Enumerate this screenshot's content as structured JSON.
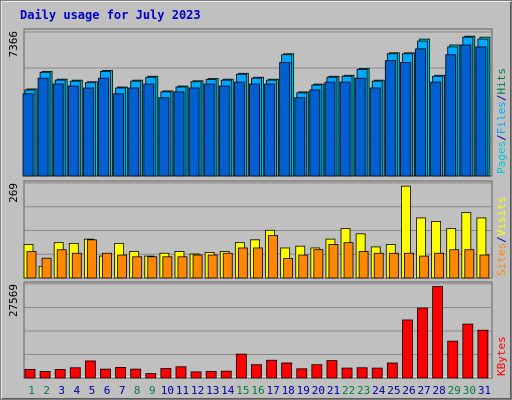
{
  "title": "Daily usage for July 2023",
  "colors": {
    "hits": "#00c8d0",
    "files": "#00a8ff",
    "pages": "#0060d0",
    "visits": "#ffff00",
    "sites": "#ff8800",
    "kbytes": "#ff0000",
    "weekend_label": "#008040",
    "weekday_label": "#0000a0",
    "panel_bg": "#c0c0c0",
    "frame": "#808080"
  },
  "chart_data": [
    {
      "type": "bar",
      "title": "Daily usage for July 2023",
      "ymax_label": "7366",
      "ylim": [
        0,
        7366
      ],
      "legend": [
        {
          "label": "Pages",
          "color": "#00c8d0"
        },
        {
          "label": "/",
          "color": "#0000a0"
        },
        {
          "label": "Files",
          "color": "#00a8ff"
        },
        {
          "label": "/",
          "color": "#0000a0"
        },
        {
          "label": "Hits",
          "color": "#008040"
        }
      ],
      "categories": [
        "1",
        "2",
        "3",
        "4",
        "5",
        "6",
        "7",
        "8",
        "9",
        "10",
        "11",
        "12",
        "13",
        "14",
        "15",
        "16",
        "17",
        "18",
        "19",
        "20",
        "21",
        "22",
        "23",
        "24",
        "25",
        "26",
        "27",
        "28",
        "29",
        "30",
        "31"
      ],
      "weekend_days": [
        "1",
        "2",
        "8",
        "9",
        "15",
        "16",
        "22",
        "23",
        "29",
        "30"
      ],
      "series": [
        {
          "name": "Hits",
          "values": [
            4450,
            5350,
            4950,
            4900,
            4820,
            5400,
            4550,
            4900,
            5100,
            4350,
            4600,
            4870,
            4980,
            4950,
            5250,
            5050,
            4950,
            6250,
            4300,
            4700,
            5100,
            5150,
            5500,
            4900,
            6300,
            6300,
            7000,
            5150,
            6700,
            7150,
            7100
          ]
        },
        {
          "name": "Files",
          "values": [
            4400,
            5300,
            4900,
            4850,
            4770,
            5350,
            4500,
            4850,
            5050,
            4300,
            4550,
            4820,
            4930,
            4900,
            5200,
            5000,
            4900,
            6200,
            4250,
            4650,
            5050,
            5100,
            5450,
            4850,
            6250,
            6250,
            6900,
            5100,
            6600,
            7100,
            7000
          ]
        },
        {
          "name": "Pages",
          "values": [
            4200,
            5000,
            4700,
            4600,
            4500,
            5000,
            4200,
            4500,
            4700,
            4000,
            4300,
            4500,
            4700,
            4600,
            4800,
            4700,
            4700,
            5800,
            4000,
            4400,
            4800,
            4800,
            5000,
            4500,
            5900,
            5800,
            6500,
            4800,
            6200,
            6700,
            6600
          ]
        }
      ]
    },
    {
      "type": "bar",
      "ymax_label": "269",
      "ylim": [
        0,
        269
      ],
      "legend": [
        {
          "label": "Sites",
          "color": "#ff8800"
        },
        {
          "label": "/",
          "color": "#0000a0"
        },
        {
          "label": "Visits",
          "color": "#ffff00"
        }
      ],
      "series": [
        {
          "name": "Visits",
          "values": [
            95,
            33,
            100,
            98,
            110,
            62,
            98,
            75,
            62,
            70,
            75,
            68,
            72,
            75,
            100,
            108,
            135,
            85,
            90,
            85,
            110,
            140,
            125,
            88,
            95,
            260,
            170,
            160,
            140,
            185,
            170
          ]
        },
        {
          "name": "Sites",
          "values": [
            75,
            56,
            80,
            70,
            108,
            70,
            65,
            60,
            60,
            60,
            60,
            65,
            65,
            70,
            85,
            85,
            120,
            55,
            65,
            80,
            95,
            100,
            75,
            70,
            70,
            70,
            62,
            70,
            80,
            80,
            65
          ]
        }
      ]
    },
    {
      "type": "bar",
      "ymax_label": "27569",
      "ylim": [
        0,
        27569
      ],
      "legend": [
        {
          "label": "KBytes",
          "color": "#ff0000"
        }
      ],
      "series": [
        {
          "name": "KBytes",
          "values": [
            2500,
            1900,
            2500,
            3000,
            5000,
            2600,
            3100,
            2600,
            1300,
            2800,
            3300,
            1800,
            1900,
            2000,
            7000,
            3900,
            5200,
            4400,
            2700,
            3900,
            5100,
            2900,
            3000,
            2900,
            4400,
            17000,
            20500,
            26800,
            10800,
            15800,
            14000
          ]
        }
      ]
    }
  ]
}
